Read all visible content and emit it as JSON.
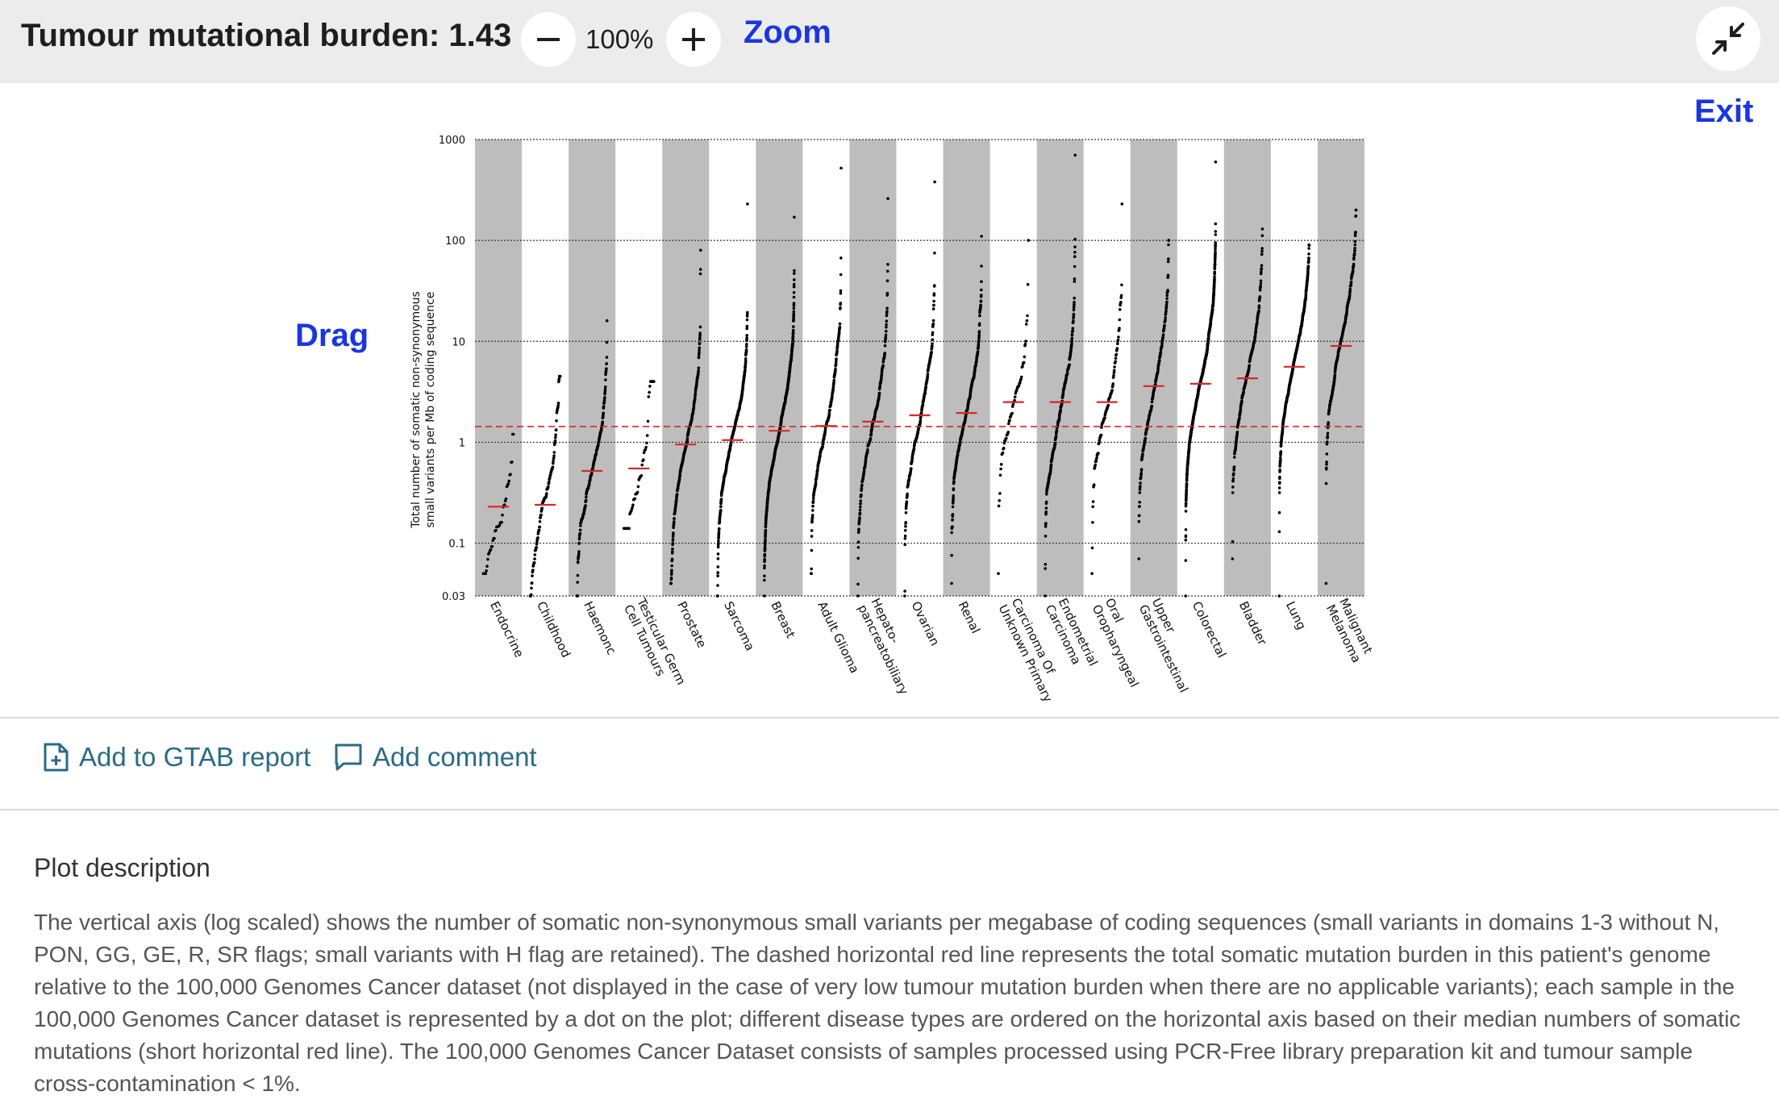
{
  "header": {
    "title": "Tumour mutational burden: 1.43",
    "zoom_level": "100%",
    "zoom_label": "Zoom",
    "exit_label": "Exit",
    "drag_label": "Drag",
    "icons": {
      "zoom_out": "minus-icon",
      "zoom_in": "plus-icon",
      "collapse": "collapse-arrows-icon"
    }
  },
  "colors": {
    "link": "#1a36e0",
    "action": "#2a6b86",
    "band": "#bdbdbd",
    "median": "#d62728"
  },
  "chart_data": {
    "type": "scatter",
    "ylabel_line1": "Total number of somatic non-synonymous",
    "ylabel_line2": "small variants per Mb of coding sequence",
    "yscale": "log",
    "ylim": [
      0.03,
      1000
    ],
    "yticks": [
      {
        "value": 0.03,
        "label": "0.03"
      },
      {
        "value": 0.1,
        "label": "0.1"
      },
      {
        "value": 1,
        "label": "1"
      },
      {
        "value": 10,
        "label": "10"
      },
      {
        "value": 100,
        "label": "100"
      },
      {
        "value": 1000,
        "label": "1000"
      }
    ],
    "grid": true,
    "patient_tmb": 1.43,
    "categories": [
      {
        "label": "Endocrine",
        "median": 0.23,
        "min": 0.05,
        "max": 1.2,
        "n": 40
      },
      {
        "label": "Childhood",
        "median": 0.24,
        "min": 0.03,
        "max": 4.5,
        "n": 120
      },
      {
        "label": "Haemonc",
        "median": 0.52,
        "min": 0.03,
        "max": 16,
        "n": 220
      },
      {
        "label": "Testicular Germ\nCell Tumours",
        "median": 0.55,
        "min": 0.14,
        "max": 4,
        "n": 45
      },
      {
        "label": "Prostate",
        "median": 0.95,
        "min": 0.04,
        "max": 80,
        "n": 260
      },
      {
        "label": "Sarcoma",
        "median": 1.05,
        "min": 0.03,
        "max": 230,
        "n": 420
      },
      {
        "label": "Breast",
        "median": 1.3,
        "min": 0.03,
        "max": 170,
        "n": 750
      },
      {
        "label": "Adult Glioma",
        "median": 1.45,
        "min": 0.05,
        "max": 520,
        "n": 260
      },
      {
        "label": "Hepato-\npancreatobiliary",
        "median": 1.6,
        "min": 0.03,
        "max": 260,
        "n": 230
      },
      {
        "label": "Ovarian",
        "median": 1.85,
        "min": 0.03,
        "max": 380,
        "n": 230
      },
      {
        "label": "Renal",
        "median": 1.95,
        "min": 0.04,
        "max": 110,
        "n": 330
      },
      {
        "label": "Carcinoma Of\nUnknown Primary",
        "median": 2.5,
        "min": 0.05,
        "max": 100,
        "n": 60
      },
      {
        "label": "Endometrial\nCarcinoma",
        "median": 2.5,
        "min": 0.03,
        "max": 700,
        "n": 280
      },
      {
        "label": "Oral\nOropharyngeal",
        "median": 2.5,
        "min": 0.05,
        "max": 230,
        "n": 100
      },
      {
        "label": "Upper\nGastrointestinal",
        "median": 3.6,
        "min": 0.07,
        "max": 100,
        "n": 230
      },
      {
        "label": "Colorectal",
        "median": 3.8,
        "min": 0.03,
        "max": 600,
        "n": 850
      },
      {
        "label": "Bladder",
        "median": 4.3,
        "min": 0.07,
        "max": 130,
        "n": 230
      },
      {
        "label": "Lung",
        "median": 5.6,
        "min": 0.03,
        "max": 90,
        "n": 520
      },
      {
        "label": "Malignant\nMelanoma",
        "median": 9,
        "min": 0.04,
        "max": 200,
        "n": 260
      }
    ]
  },
  "actions": {
    "add_report": "Add to GTAB report",
    "add_comment": "Add comment",
    "report_icon": "file-plus-icon",
    "comment_icon": "comment-icon"
  },
  "description": {
    "title": "Plot description",
    "text": "The vertical axis (log scaled) shows the number of somatic non-synonymous small variants per megabase of coding sequences (small variants in domains 1-3 without N, PON, GG, GE, R, SR flags; small variants with H flag are retained). The dashed horizontal red line represents the total somatic mutation burden in this patient's genome relative to the 100,000 Genomes Cancer dataset (not displayed in the case of very low tumour mutation burden when there are no applicable variants); each sample in the 100,000 Genomes Cancer dataset is represented by a dot on the plot; different disease types are ordered on the horizontal axis based on their median numbers of somatic mutations (short horizontal red line). The 100,000 Genomes Cancer Dataset consists of samples processed using PCR-Free library preparation kit and tumour sample cross-contamination < 1%."
  }
}
